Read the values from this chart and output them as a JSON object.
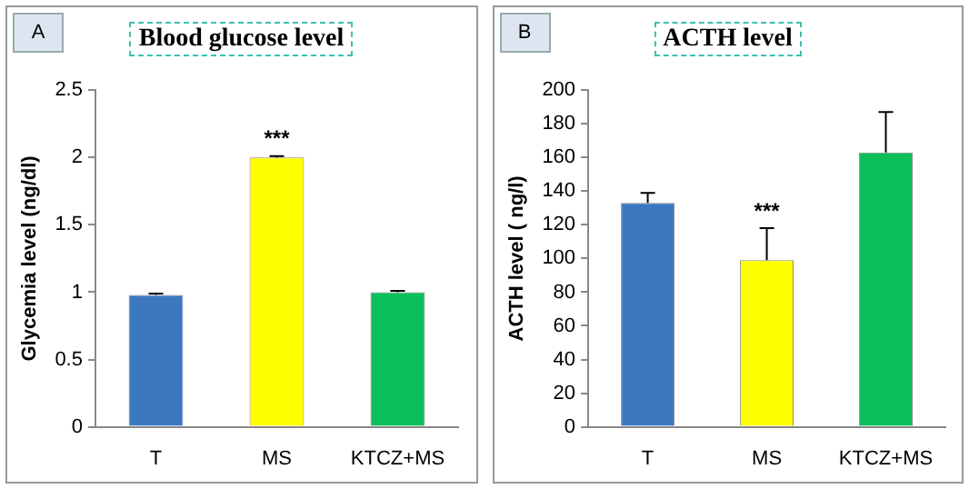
{
  "chart_data": [
    {
      "type": "bar",
      "title": "Blood glucose level",
      "ylabel": "Glycemia level (ng/dl)",
      "categories": [
        "T",
        "MS",
        "KTCZ+MS"
      ],
      "values": [
        0.98,
        2.0,
        1.0
      ],
      "colors": [
        "#3b78c0",
        "#ffff00",
        "#0bbf5a"
      ],
      "errors": [
        [
          0.98,
          0.99
        ],
        [
          2.0,
          2.01
        ],
        [
          1.0,
          1.01
        ]
      ],
      "ylim": [
        0,
        2.5
      ],
      "yticks": [
        0,
        0.5,
        1,
        1.5,
        2,
        2.5
      ],
      "annotations": [
        "A",
        {
          "text": "***",
          "x": "MS",
          "y": 2.01
        }
      ]
    },
    {
      "type": "bar",
      "title": "ACTH level",
      "ylabel": "ACTH level ( ng/l)",
      "categories": [
        "T",
        "MS",
        "KTCZ+MS"
      ],
      "values": [
        133,
        99,
        163
      ],
      "colors": [
        "#3b78c0",
        "#ffff00",
        "#0bbf5a"
      ],
      "errors": [
        [
          133,
          139
        ],
        [
          99,
          118
        ],
        [
          163,
          187
        ]
      ],
      "ylim": [
        0,
        200
      ],
      "yticks": [
        0,
        20,
        40,
        60,
        80,
        100,
        120,
        140,
        160,
        180,
        200
      ],
      "annotations": [
        "B",
        {
          "text": "***",
          "x": "MS",
          "y": 118
        }
      ]
    }
  ]
}
